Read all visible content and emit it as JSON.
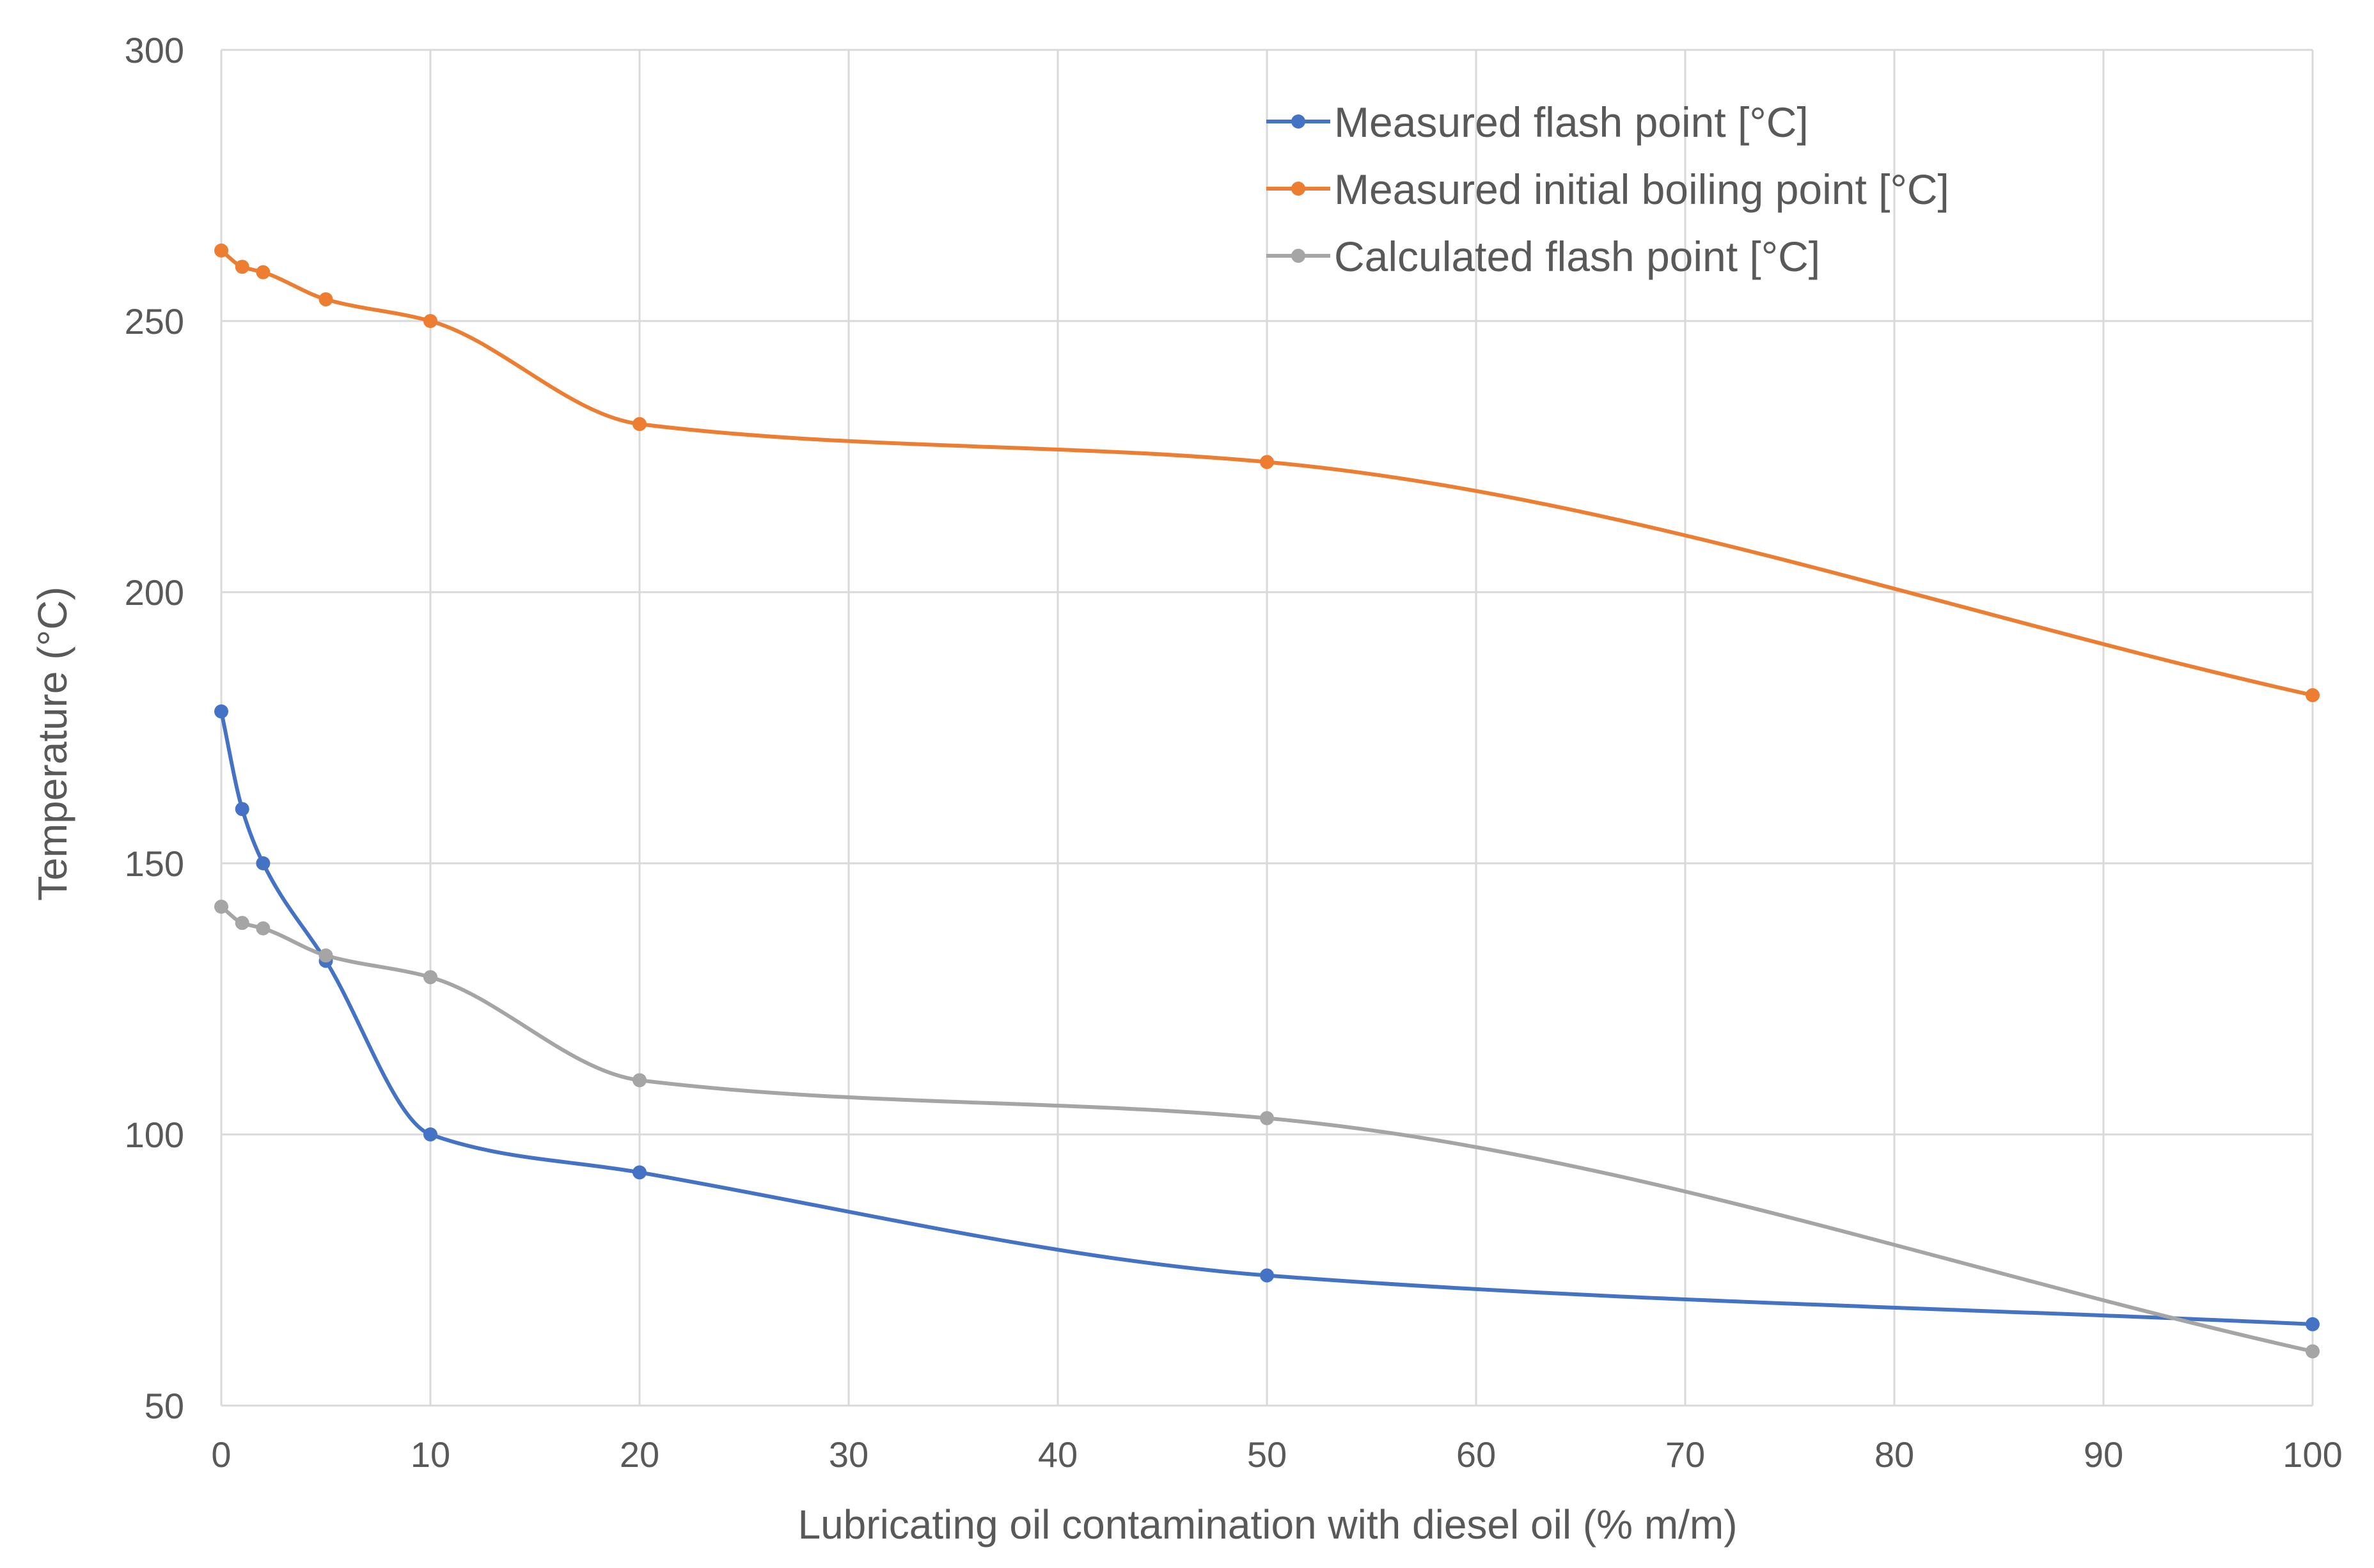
{
  "chart_data": {
    "type": "line",
    "title": "",
    "xlabel": "Lubricating oil contamination with diesel oil (% m/m)",
    "ylabel": "Temperature (°C)",
    "xlim": [
      0,
      100
    ],
    "ylim": [
      50,
      300
    ],
    "xticks": [
      0,
      10,
      20,
      30,
      40,
      50,
      60,
      70,
      80,
      90,
      100
    ],
    "yticks": [
      50,
      100,
      150,
      200,
      250,
      300
    ],
    "grid": true,
    "legend_position": "top-right",
    "series": [
      {
        "name": "Measured flash point [°C]",
        "color": "#4472C4",
        "x": [
          0,
          1,
          2,
          5,
          10,
          20,
          50,
          100
        ],
        "y": [
          178,
          160,
          150,
          132,
          100,
          93,
          74,
          65
        ]
      },
      {
        "name": "Measured initial boiling point  [°C]",
        "color": "#ED7D31",
        "x": [
          0,
          1,
          2,
          5,
          10,
          20,
          50,
          100
        ],
        "y": [
          263,
          260,
          259,
          254,
          250,
          231,
          224,
          181
        ]
      },
      {
        "name": "Calculated flash point  [°C]",
        "color": "#A5A5A5",
        "x": [
          0,
          1,
          2,
          5,
          10,
          20,
          50,
          100
        ],
        "y": [
          142,
          139,
          138,
          133,
          129,
          110,
          103,
          60
        ]
      }
    ]
  }
}
